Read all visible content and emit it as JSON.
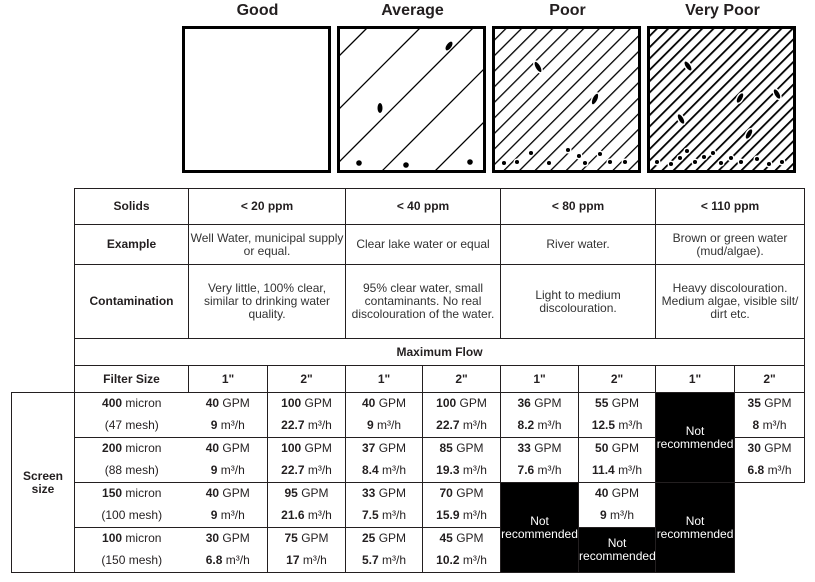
{
  "quality_headers": [
    "Good",
    "Average",
    "Poor",
    "Very Poor"
  ],
  "rows": {
    "solids": {
      "label": "Solids",
      "values": [
        "< 20 ppm",
        "< 40 ppm",
        "< 80 ppm",
        "< 110 ppm"
      ]
    },
    "example": {
      "label": "Example",
      "values": [
        "Well Water, municipal supply or equal.",
        "Clear lake water or equal",
        "River water.",
        "Brown or green water (mud/algae)."
      ]
    },
    "contamination": {
      "label": "Contamination",
      "values": [
        "Very little, 100% clear, similar to drinking water quality.",
        "95% clear water, small contaminants. No real discolouration of the water.",
        "Light to medium discolouration.",
        "Heavy discolouration. Medium algae, visible silt/ dirt etc."
      ]
    }
  },
  "maximum_flow_label": "Maximum Flow",
  "filter_size_label": "Filter Size",
  "filter_sizes": [
    "1\"",
    "2\"",
    "1\"",
    "2\"",
    "1\"",
    "2\"",
    "1\"",
    "2\""
  ],
  "screen_size_label": "Screen size",
  "unit_gpm": "GPM",
  "unit_m3h": "m³/h",
  "not_recommended": "Not recommended",
  "screens": [
    {
      "micron": "400",
      "micron_unit": "micron",
      "mesh": "(47 mesh)",
      "gpm": [
        "40",
        "100",
        "40",
        "100",
        "36",
        "55",
        "35"
      ],
      "m3h": [
        "9",
        "22.7",
        "9",
        "22.7",
        "8.2",
        "12.5",
        "8"
      ]
    },
    {
      "micron": "200",
      "micron_unit": "micron",
      "mesh": "(88 mesh)",
      "gpm": [
        "40",
        "100",
        "37",
        "85",
        "33",
        "50",
        "30"
      ],
      "m3h": [
        "9",
        "22.7",
        "8.4",
        "19.3",
        "7.6",
        "11.4",
        "6.8"
      ]
    },
    {
      "micron": "150",
      "micron_unit": "micron",
      "mesh": "(100 mesh)",
      "gpm": [
        "40",
        "95",
        "33",
        "70",
        "40"
      ],
      "m3h": [
        "9",
        "21.6",
        "7.5",
        "15.9",
        "9"
      ]
    },
    {
      "micron": "100",
      "micron_unit": "micron",
      "mesh": "(150 mesh)",
      "gpm": [
        "30",
        "75",
        "25",
        "45"
      ],
      "m3h": [
        "6.8",
        "17",
        "5.7",
        "10.2"
      ]
    }
  ]
}
